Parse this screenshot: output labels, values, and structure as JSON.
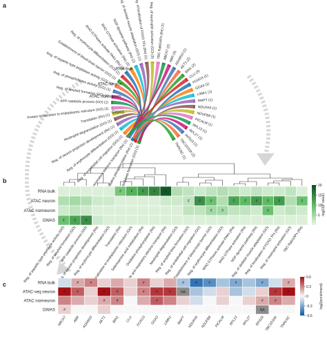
{
  "panels": {
    "a": "a",
    "b": "b",
    "c": "c"
  },
  "colors": {
    "green_max": "#0a4d20",
    "green_min": "#eaf6e6",
    "red_max": "#a50f15",
    "blue_max": "#0b5aa8",
    "na_gray": "#8c8c8c"
  },
  "chart_data": [
    {
      "type": "chord",
      "panel": "a",
      "sources": [
        "RNA bulk",
        "ATAC neuron",
        "ATAC nonneuron",
        "GWAS"
      ],
      "targets": [
        "Reg. of amyloid-beta formation (GO) (1)",
        "Oxidative phosphorylation (Re) (1)",
        "The citric acid TCA cycle and respiratory electron transport (Re) (1)",
        "Reg. of endothelial cell migration (GO) (1)",
        "Reg. of erythrocyte differentiation (GO) (1)",
        "Reg. of neuron projection development (Re) (1)",
        "Neutrophil degranulation (GO) (1)",
        "Translation (Re) (1)",
        "Protein localization to endoplasmic reticulum (GO) (1)",
        "APP catabolic process (GO) (1)",
        "Reg. of amyloid formation (GO) (1)",
        "Reg. of phospholipase activity (GO) (1)",
        "Reg. of aspartic-type peptidase activity (GO) (1)",
        "Establishment of blood-brain barrier (GO) (1)",
        "Reg. of erythrocyte differentiation (GO) (1)",
        "RHO GTPases activate PAKs (Re) (2)",
        "RHO GTPase activation (Re) (2)",
        "NGF-dynamin pathway (Re) (2)",
        "Reg. of skeletal muscle adaptation (GO) (1)",
        "Reg. of localization of FOXO TFs (Re) (1)",
        "Reg. of neutrophil activation (GO) (3)",
        "TBC RabGAPs (Re) (1)",
        "ABCA7 (2)",
        "ABR (3)",
        "ADAM10 (1)",
        "AKT1 (2)",
        "BIN1 (2)",
        "CLU (3)",
        "FOXO3 (1)",
        "GGA3 (1)",
        "LIMK1 (1)",
        "MAPT (1)",
        "NDUFA5 (1)",
        "NDUFB8 (1)",
        "PICALM (1)",
        "RPL13 (1)",
        "RPL27 (1)",
        "RPS19 (1)",
        "TBC1D10A (2)",
        "TNRC6C (1)"
      ]
    },
    {
      "type": "heatmap",
      "panel": "b",
      "rows": [
        "RNA bulk",
        "ATAC neuron",
        "ATAC nonneuron",
        "GWAS"
      ],
      "columns": [
        "Reg. of aspartic-type peptidase activity (GO)",
        "Reg. of amyloid formation (GO)",
        "APP catabolic process (GO)",
        "Reg. of neuron projection development (Re)",
        "Reg. of erythrocyte differentiation (GO)",
        "Translation (Re)",
        "Protein localization to endoplasmic reticulum (GO)",
        "Selenoamino acid metabolism (Re)",
        "Oxidative phosphorylation (Re)",
        "The citric acid TCA cycle and respiratory electron transport (Re)",
        "Neutrophil degranulation (GO)",
        "Reg. of amyloid-beta formation (GO)",
        "Reg. of endothelial cell migration (GO)",
        "Establishment of blood-brain barrier (GO)",
        "Reg. of erythrocyte differentiation (GO)",
        "RHO GTPases activate PAKs (Re)",
        "RHO GTPase activation (Re)",
        "NGF-dynamin pathway (Re)",
        "Reg. of skeletal muscle adaptation (GO)",
        "Reg. of localization of FOXO TFs (Re)",
        "Reg. of neutrophil activation (GO)",
        "TBC RabGAPs (Re)"
      ],
      "values": [
        [
          1,
          1,
          1,
          1,
          1,
          8,
          11,
          13,
          15,
          19,
          4,
          3,
          2,
          3,
          4,
          3,
          2,
          3,
          2,
          2,
          3,
          1
        ],
        [
          4,
          5,
          4,
          2,
          2,
          1,
          1,
          1,
          1,
          2,
          2,
          3,
          14,
          9,
          4,
          12,
          10,
          13,
          10,
          13,
          4,
          9
        ],
        [
          2,
          3,
          2,
          1,
          1,
          1,
          1,
          1,
          1,
          1,
          1,
          3,
          3,
          5,
          5,
          3,
          3,
          2,
          9,
          2,
          3,
          2
        ],
        [
          9,
          12,
          14,
          2,
          1,
          1,
          1,
          1,
          1,
          1,
          1,
          1,
          1,
          1,
          1,
          1,
          1,
          1,
          1,
          1,
          1,
          1
        ]
      ],
      "significant": [
        [
          0,
          0,
          0,
          0,
          0,
          1,
          1,
          1,
          1,
          1,
          0,
          0,
          0,
          0,
          0,
          0,
          0,
          0,
          0,
          0,
          0,
          0
        ],
        [
          0,
          0,
          0,
          0,
          0,
          0,
          0,
          0,
          0,
          0,
          0,
          1,
          1,
          1,
          0,
          1,
          1,
          1,
          1,
          1,
          0,
          1
        ],
        [
          0,
          0,
          0,
          0,
          0,
          0,
          0,
          0,
          0,
          0,
          0,
          0,
          0,
          1,
          1,
          0,
          0,
          0,
          1,
          0,
          0,
          0
        ],
        [
          1,
          1,
          1,
          0,
          0,
          0,
          0,
          0,
          0,
          0,
          0,
          0,
          0,
          0,
          0,
          0,
          0,
          0,
          0,
          0,
          0,
          0
        ]
      ],
      "colorbar": {
        "label": "-log10(P value)",
        "ticks": [
          5,
          10,
          15,
          20
        ],
        "min": 0,
        "max": 20
      }
    },
    {
      "type": "heatmap",
      "panel": "c",
      "rows": [
        "RNA bulk",
        "ATAC-seq neuron",
        "ATAC nonneuron",
        "GWAS"
      ],
      "columns": [
        "ABCA7",
        "ABR",
        "ADAM10",
        "AKT1",
        "BIN1",
        "CLU",
        "FOXO3",
        "GGA3",
        "LIMK1",
        "MAPT",
        "NDUFA5",
        "NDUFB8",
        "PICALM",
        "RPL13",
        "RPL27",
        "RPS19",
        "TBC1D10A",
        "TNRC6C"
      ],
      "values": [
        [
          -0.1,
          0.2,
          0.3,
          0.1,
          0.2,
          0.1,
          0.3,
          0.1,
          0.2,
          -0.2,
          -0.5,
          -0.4,
          -0.2,
          -0.3,
          -0.2,
          -0.3,
          -0.1,
          0.2
        ],
        [
          0.6,
          0.4,
          0.1,
          0.6,
          0.4,
          0.1,
          0.3,
          0.5,
          0.5,
          null,
          -0.2,
          -0.1,
          0.1,
          -0.2,
          -0.1,
          0.1,
          0.5,
          0.6
        ],
        [
          0.3,
          0.2,
          0.1,
          0.2,
          0.3,
          0.0,
          0.2,
          0.4,
          0.3,
          0.1,
          -0.1,
          0.0,
          0.1,
          0.0,
          0.1,
          0.2,
          0.3,
          0.2
        ],
        [
          0.1,
          0.0,
          0.0,
          0.1,
          0.0,
          0.0,
          0.0,
          0.0,
          0.0,
          0.0,
          0.0,
          0.0,
          0.0,
          0.0,
          0.0,
          null,
          0.0,
          0.0
        ]
      ],
      "significant": [
        [
          0,
          1,
          1,
          0,
          0,
          0,
          1,
          0,
          0,
          1,
          1,
          1,
          0,
          1,
          0,
          1,
          0,
          1
        ],
        [
          1,
          1,
          0,
          1,
          1,
          0,
          1,
          1,
          1,
          0,
          0,
          0,
          0,
          0,
          0,
          0,
          1,
          1
        ],
        [
          0,
          0,
          0,
          1,
          1,
          0,
          0,
          1,
          0,
          0,
          0,
          0,
          0,
          0,
          0,
          1,
          1,
          0
        ],
        [
          1,
          0,
          0,
          0,
          0,
          0,
          0,
          0,
          0,
          0,
          0,
          0,
          0,
          0,
          0,
          0,
          0,
          0
        ]
      ],
      "na_label": "NA",
      "colorbar": {
        "label": "log2(enrichment)",
        "ticks": [
          -0.6,
          -0.3,
          0,
          0.3,
          0.6
        ],
        "min": -0.6,
        "max": 0.6
      }
    }
  ]
}
